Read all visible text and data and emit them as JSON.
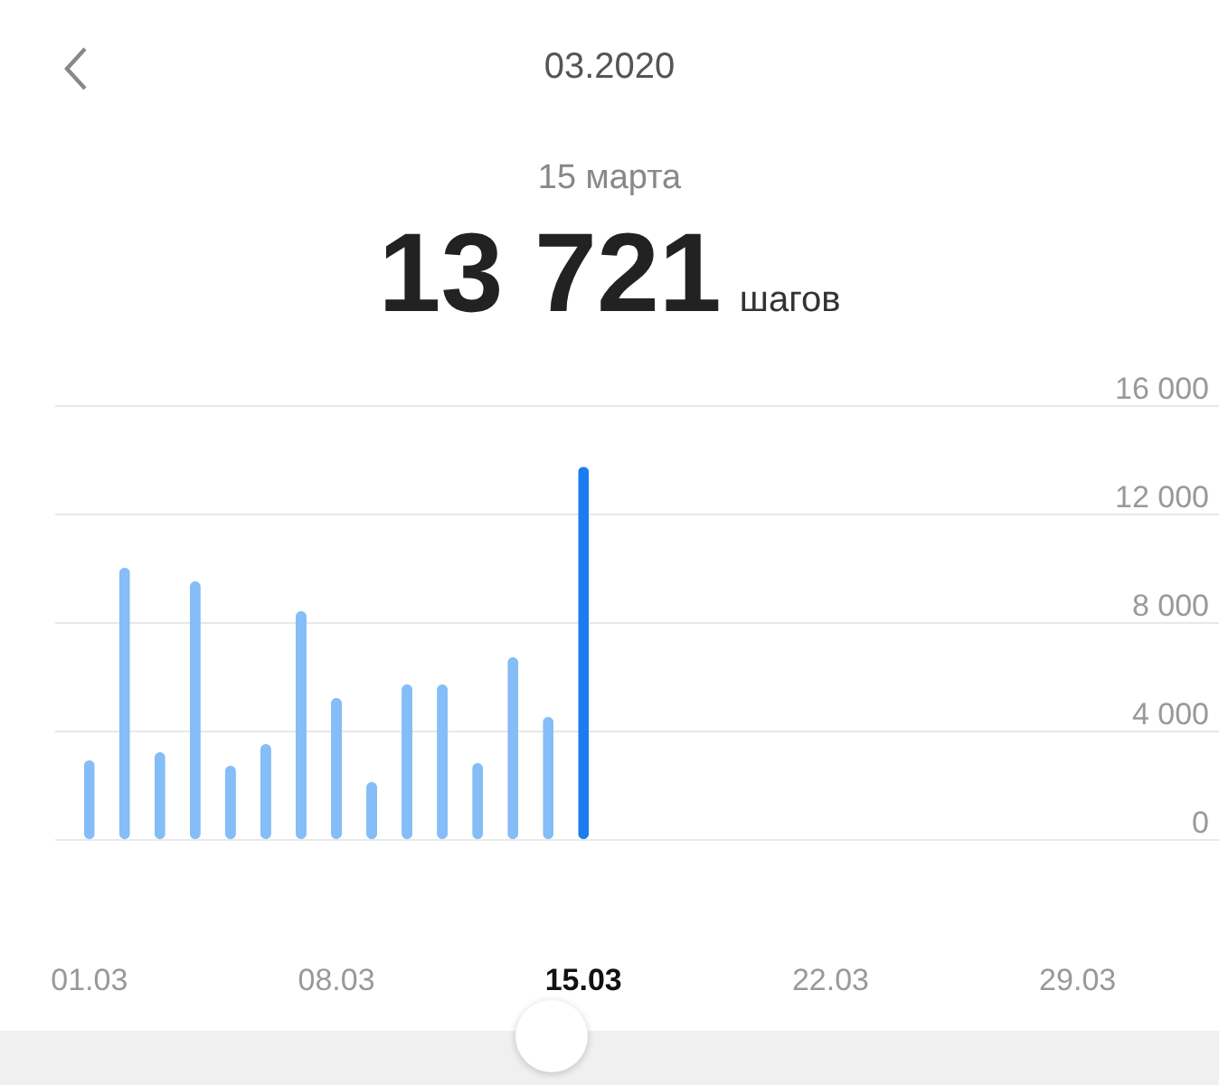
{
  "chart_data": {
    "type": "bar",
    "title": "03.2020",
    "subtitle": "15 марта",
    "annotations": [
      "13 721",
      "шагов"
    ],
    "categories": [
      "01.03",
      null,
      null,
      null,
      null,
      null,
      null,
      "08.03",
      null,
      null,
      null,
      null,
      null,
      null,
      "15.03",
      null,
      null,
      null,
      null,
      null,
      null,
      "22.03",
      null,
      null,
      null,
      null,
      null,
      null,
      "29.03",
      null,
      null
    ],
    "values": [
      2900,
      10000,
      3200,
      9500,
      2700,
      3500,
      8400,
      5200,
      2100,
      5700,
      5700,
      2800,
      6700,
      4500,
      13721,
      null,
      null,
      null,
      null,
      null,
      null,
      null,
      null,
      null,
      null,
      null,
      null,
      null,
      null,
      null,
      null
    ],
    "colors": [
      "#84bdf7",
      "#84bdf7",
      "#84bdf7",
      "#84bdf7",
      "#84bdf7",
      "#84bdf7",
      "#84bdf7",
      "#84bdf7",
      "#84bdf7",
      "#84bdf7",
      "#84bdf7",
      "#84bdf7",
      "#84bdf7",
      "#84bdf7",
      "#1a7cf0",
      "#84bdf7",
      "#84bdf7",
      "#84bdf7",
      "#84bdf7",
      "#84bdf7",
      "#84bdf7",
      "#84bdf7",
      "#84bdf7",
      "#84bdf7",
      "#84bdf7",
      "#84bdf7",
      "#84bdf7",
      "#84bdf7",
      "#84bdf7",
      "#84bdf7",
      "#84bdf7"
    ],
    "ylim": [
      0,
      16000
    ],
    "yticks": [
      {
        "value": 0,
        "label": "0"
      },
      {
        "value": 4000,
        "label": "4 000"
      },
      {
        "value": 8000,
        "label": "8 000"
      },
      {
        "value": 12000,
        "label": "12 000"
      },
      {
        "value": 16000,
        "label": "16 000"
      }
    ],
    "grid": "y"
  }
}
